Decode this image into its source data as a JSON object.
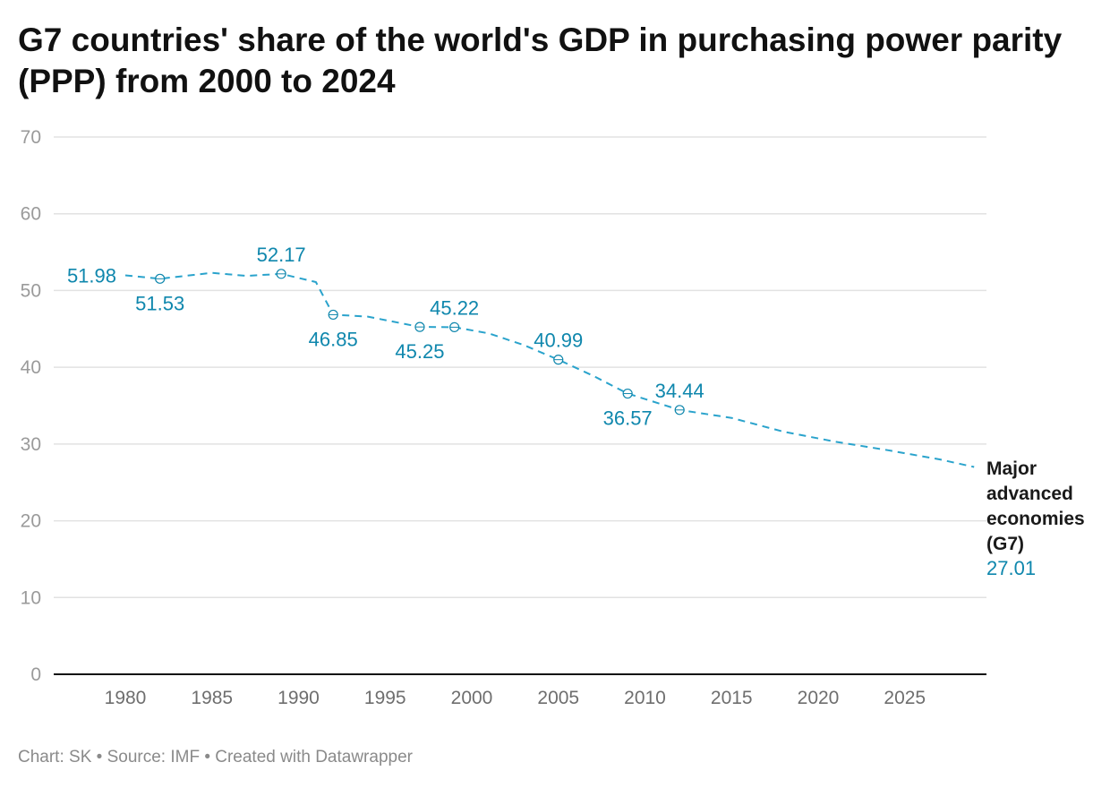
{
  "chart_data": {
    "type": "line",
    "title": "G7 countries' share of the world's GDP in purchasing power parity (PPP) from 2000 to 2024",
    "xlabel": "",
    "ylabel": "",
    "ylim": [
      0,
      70
    ],
    "yticks": [
      0,
      10,
      20,
      30,
      40,
      50,
      60,
      70
    ],
    "xticks": [
      1980,
      1985,
      1990,
      1995,
      2000,
      2005,
      2010,
      2015,
      2020,
      2025
    ],
    "grid": true,
    "legend": "direct label at line end (right)",
    "colors": {
      "line": "#2aa3cc",
      "label": "#0f87ad",
      "grid": "#e2e2e2",
      "axis": "#111111"
    },
    "series": [
      {
        "name": "Major advanced economies (G7)",
        "end_value_label": "27.01",
        "x": [
          1980,
          1982,
          1985,
          1987,
          1989,
          1991,
          1992,
          1994,
          1997,
          1999,
          2001,
          2003,
          2005,
          2007,
          2009,
          2012,
          2015,
          2018,
          2021,
          2024,
          2027,
          2029
        ],
        "values": [
          51.98,
          51.53,
          52.3,
          51.9,
          52.17,
          51.1,
          46.85,
          46.6,
          45.25,
          45.22,
          44.4,
          42.9,
          40.99,
          38.9,
          36.57,
          34.44,
          33.4,
          31.6,
          30.3,
          29.2,
          28.0,
          27.01
        ]
      }
    ],
    "annotations": [
      {
        "x": 1980,
        "text": "51.98",
        "placement": "left",
        "marker": false
      },
      {
        "x": 1982,
        "text": "51.53",
        "placement": "below",
        "marker": true
      },
      {
        "x": 1989,
        "text": "52.17",
        "placement": "above",
        "marker": true
      },
      {
        "x": 1992,
        "text": "46.85",
        "placement": "below",
        "marker": true
      },
      {
        "x": 1997,
        "text": "45.25",
        "placement": "below",
        "marker": true
      },
      {
        "x": 1999,
        "text": "45.22",
        "placement": "above",
        "marker": true
      },
      {
        "x": 2005,
        "text": "40.99",
        "placement": "above",
        "marker": true
      },
      {
        "x": 2009,
        "text": "36.57",
        "placement": "below",
        "marker": true
      },
      {
        "x": 2012,
        "text": "34.44",
        "placement": "above",
        "marker": true
      }
    ]
  },
  "series_label_lines": [
    "Major",
    "advanced",
    "economies",
    "(G7)"
  ],
  "footer": "Chart: SK • Source: IMF • Created with Datawrapper"
}
